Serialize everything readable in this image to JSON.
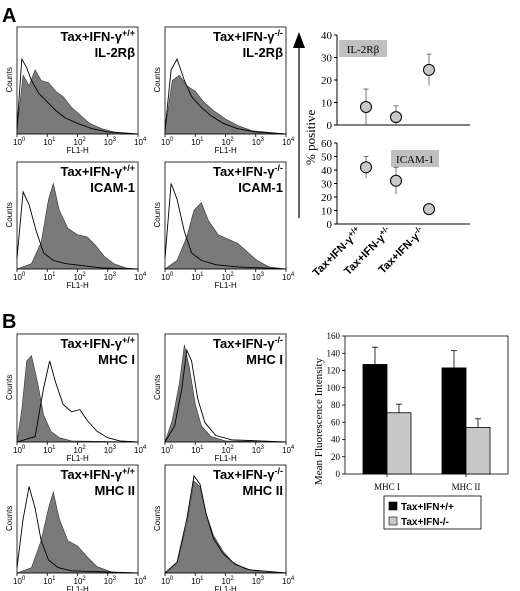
{
  "panels": {
    "a": "A",
    "b": "B"
  },
  "flow": {
    "xlabel": "FL1-H",
    "ylabel": "Counts",
    "xtick_base": "10",
    "xtick_exps": [
      "0",
      "1",
      "2",
      "3",
      "4"
    ]
  },
  "histograms": [
    {
      "group": "Tax+IFN-γ",
      "genotype": "+/+",
      "marker": "IL-2Rβ"
    },
    {
      "group": "Tax+IFN-γ",
      "genotype": "-/-",
      "marker": "IL-2Rβ"
    },
    {
      "group": "Tax+IFN-γ",
      "genotype": "+/+",
      "marker": "ICAM-1"
    },
    {
      "group": "Tax+IFN-γ",
      "genotype": "-/-",
      "marker": "ICAM-1"
    },
    {
      "group": "Tax+IFN-γ",
      "genotype": "+/+",
      "marker": "MHC I"
    },
    {
      "group": "Tax+IFN-γ",
      "genotype": "-/-",
      "marker": "MHC I"
    },
    {
      "group": "Tax+IFN-γ",
      "genotype": "+/+",
      "marker": "MHC II"
    },
    {
      "group": "Tax+IFN-γ",
      "genotype": "-/-",
      "marker": "MHC II"
    }
  ],
  "chart_data": [
    {
      "type": "scatter",
      "ylabel": "% positive",
      "categories": [
        "Tax+IFN-γ+/+",
        "Tax+IFN-γ+/-",
        "Tax+IFN-γ-/-"
      ],
      "subplots": [
        {
          "label": "IL-2Rβ",
          "ylim": [
            0,
            40
          ],
          "yticks": [
            0,
            10,
            20,
            30,
            40
          ],
          "values": [
            8,
            3.5,
            24.5
          ],
          "errors": [
            8,
            5,
            7
          ]
        },
        {
          "label": "ICAM-1",
          "ylim": [
            0,
            60
          ],
          "yticks": [
            0,
            10,
            20,
            30,
            40,
            50,
            60
          ],
          "values": [
            42,
            32,
            11
          ],
          "errors": [
            8,
            10,
            3
          ]
        }
      ]
    },
    {
      "type": "bar",
      "ylabel": "Mean Fluorescence Intensity",
      "categories": [
        "MHC I",
        "MHC II"
      ],
      "ylim": [
        0,
        160
      ],
      "yticks": [
        0,
        20,
        40,
        60,
        80,
        100,
        120,
        140,
        160
      ],
      "series": [
        {
          "name": "Tax+IFN+/+",
          "color": "#000000",
          "values": [
            127,
            123
          ],
          "errors": [
            20,
            20
          ]
        },
        {
          "name": "Tax+IFN-/-",
          "color": "#c8c8c8",
          "values": [
            71,
            54
          ],
          "errors": [
            10,
            10
          ]
        }
      ]
    }
  ]
}
